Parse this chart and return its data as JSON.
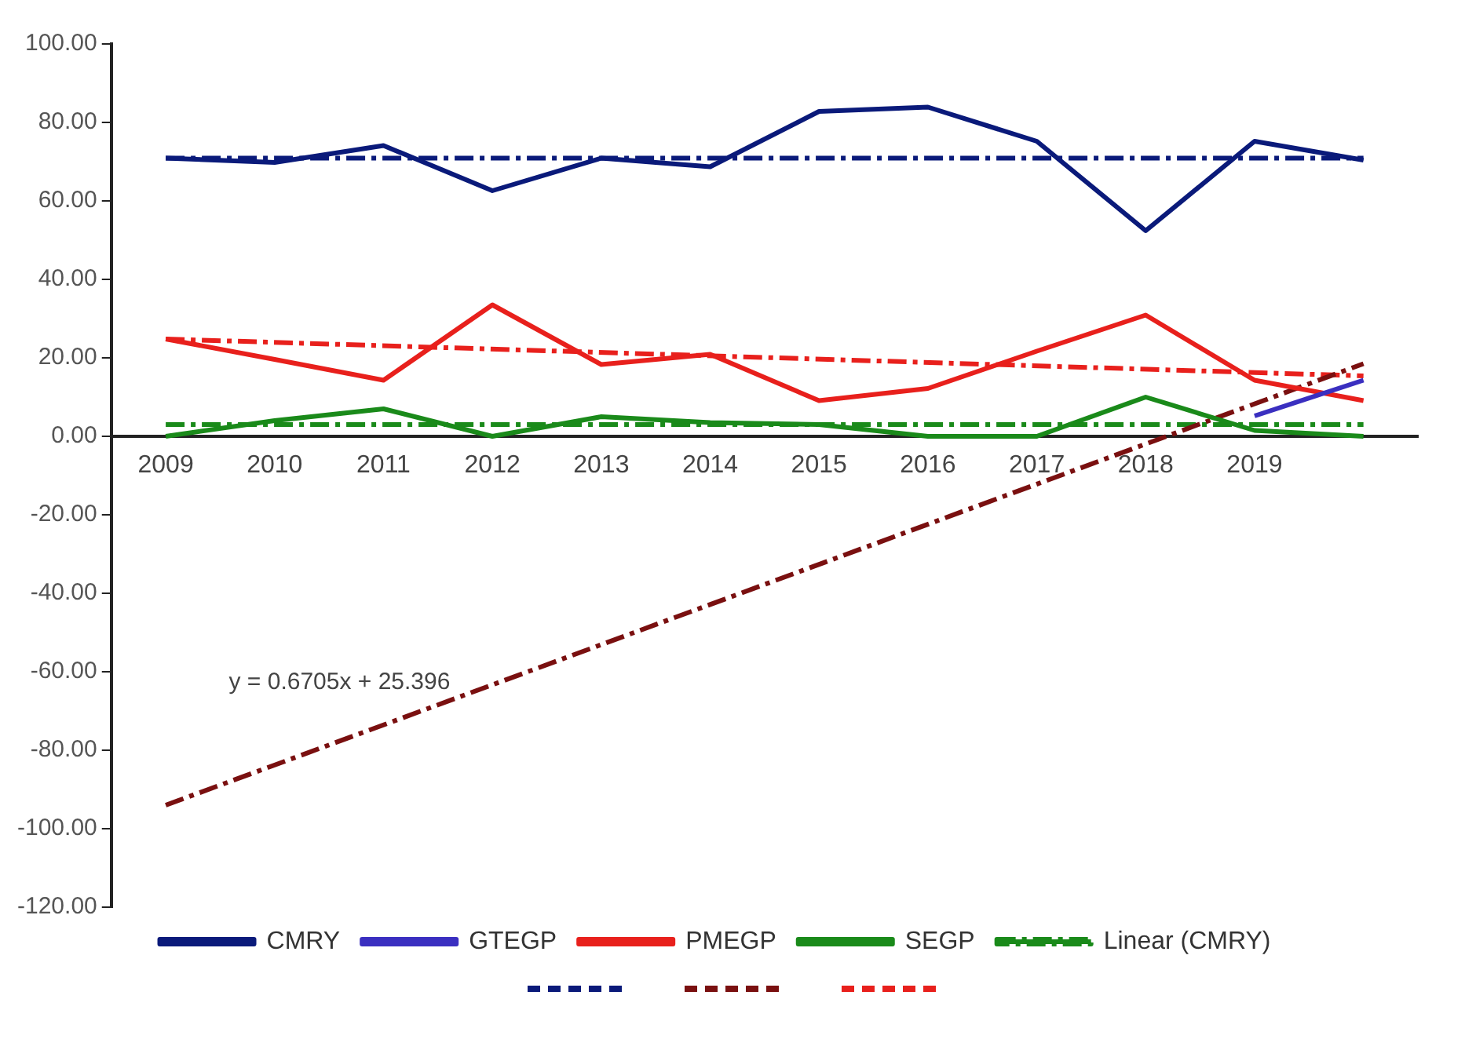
{
  "chart_data": {
    "type": "line",
    "categories": [
      "2009",
      "2010",
      "2011",
      "2012",
      "2013",
      "2014",
      "2015",
      "2016",
      "2017",
      "2018",
      "2019",
      null
    ],
    "ylim": [
      -120,
      100
    ],
    "yticks": [
      {
        "value": -120,
        "label": "-120.00"
      },
      {
        "value": -100,
        "label": "-100.00"
      },
      {
        "value": -80,
        "label": "-80.00"
      },
      {
        "value": -60,
        "label": "-60.00"
      },
      {
        "value": -40,
        "label": "-40.00"
      },
      {
        "value": -20,
        "label": "-20.00"
      },
      {
        "value": 0,
        "label": "0.00"
      },
      {
        "value": 20,
        "label": "20.00"
      },
      {
        "value": 40,
        "label": "40.00"
      },
      {
        "value": 60,
        "label": "60.00"
      },
      {
        "value": 80,
        "label": "80.00"
      },
      {
        "value": 100,
        "label": "100.00"
      }
    ],
    "grid": false,
    "legend": "bottom",
    "marker": "none",
    "series": [
      {
        "name": "CMRY",
        "color": "#0a1a7a",
        "line_style": "solid",
        "values": [
          70.9,
          69.8,
          74.1,
          62.6,
          70.9,
          68.7,
          82.8,
          83.9,
          75.2,
          52.4,
          75.2,
          70.4
        ]
      },
      {
        "name": "GTEGP",
        "color": "#3a2fc0",
        "line_style": "solid",
        "values": [
          null,
          null,
          null,
          null,
          null,
          null,
          null,
          null,
          null,
          null,
          5.2,
          14.3
        ]
      },
      {
        "name": "PMEGP",
        "color": "#e8201c",
        "line_style": "solid",
        "values": [
          24.8,
          19.6,
          14.3,
          33.5,
          18.3,
          20.9,
          9.1,
          12.2,
          21.7,
          30.9,
          14.3,
          9.1
        ]
      },
      {
        "name": "SEGP",
        "color": "#1a8a1a",
        "line_style": "solid",
        "values": [
          0,
          4,
          7,
          0,
          5,
          3.5,
          3,
          0,
          0,
          10,
          1.5,
          0
        ]
      },
      {
        "color": "#0a1a7a",
        "line_style": "dashed",
        "values": [
          70.9,
          null,
          null,
          null,
          null,
          null,
          null,
          null,
          null,
          null,
          null,
          70.9
        ]
      },
      {
        "color": "#7a1010",
        "line_style": "dashed",
        "values": [
          -94,
          null,
          null,
          null,
          null,
          null,
          null,
          null,
          null,
          null,
          null,
          18.5
        ]
      },
      {
        "color": "#e8201c",
        "line_style": "dashed",
        "values": [
          24.8,
          null,
          null,
          null,
          null,
          null,
          null,
          null,
          null,
          null,
          null,
          15.4
        ]
      },
      {
        "name": "Linear (CMRY)",
        "color": "#1a8a1a",
        "line_style": "dashed",
        "values": [
          3,
          null,
          null,
          null,
          null,
          null,
          null,
          null,
          null,
          null,
          null,
          3
        ]
      }
    ],
    "annotations": [
      "y = 0.6705x + 25.396"
    ]
  }
}
